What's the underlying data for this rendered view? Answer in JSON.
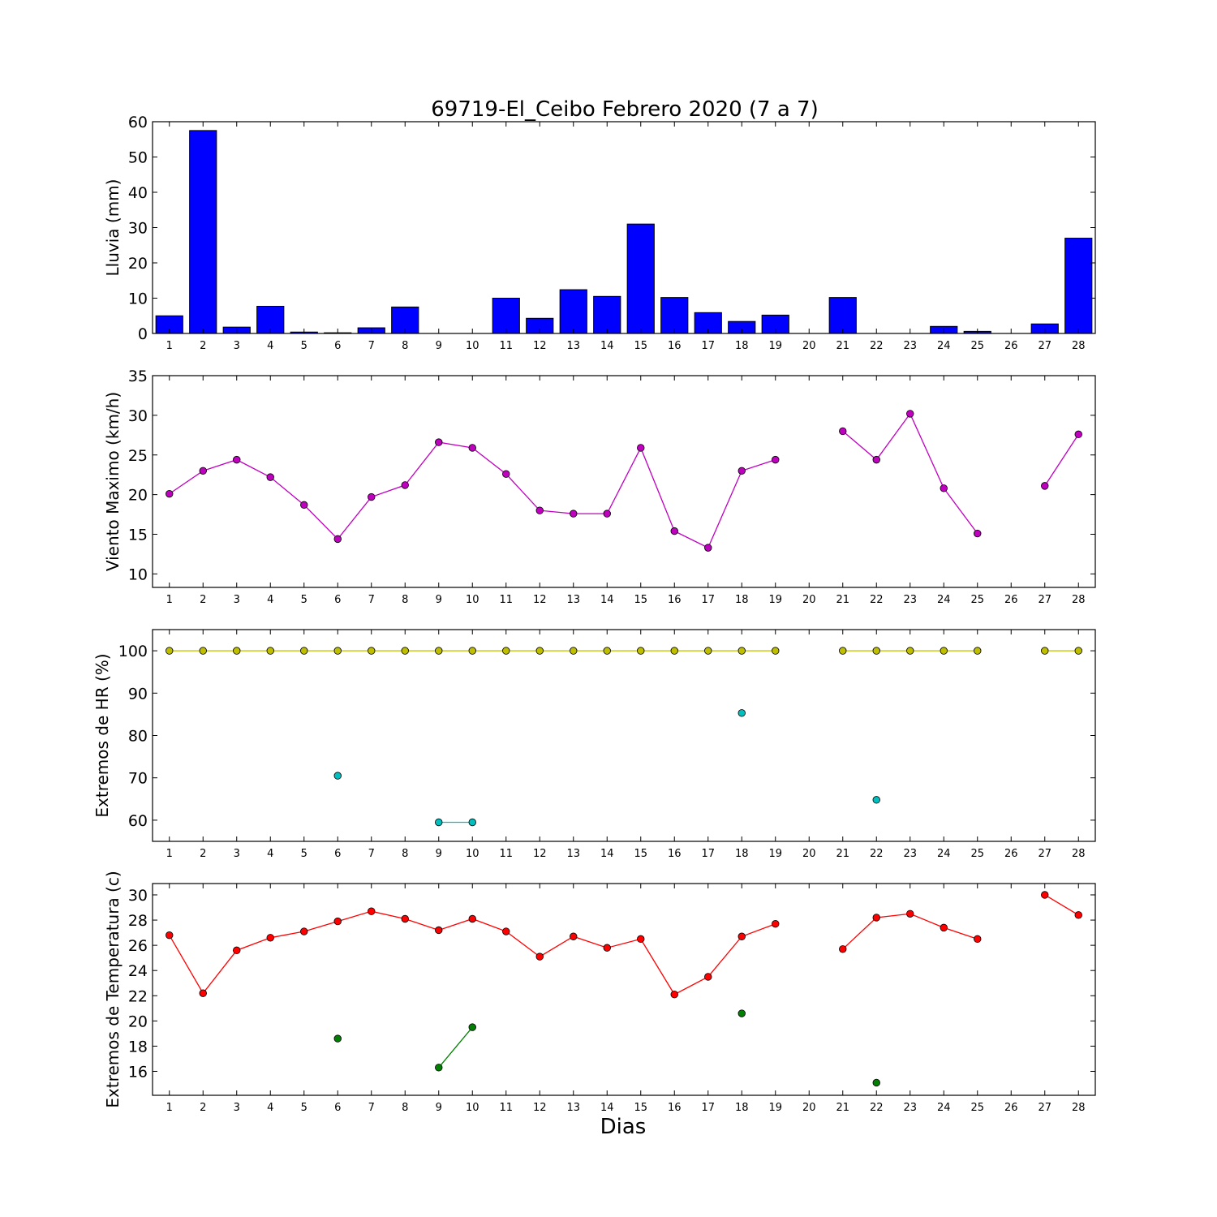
{
  "figure": {
    "title": "69719-El_Ceibo Febrero 2020  (7 a 7)",
    "xlabel": "Dias",
    "colors": {
      "rain": "#0000ff",
      "wind": "#bf00bf",
      "hr_max": "#bfbf00",
      "hr_min": "#00bfbf",
      "temp_max": "#ff0000",
      "temp_min": "#008000"
    }
  },
  "chart_data": [
    {
      "type": "bar",
      "ylabel": "Lluvia (mm)",
      "ylim": [
        0,
        60
      ],
      "yticks": [
        0,
        10,
        20,
        30,
        40,
        50,
        60
      ],
      "x": [
        1,
        2,
        3,
        4,
        5,
        6,
        7,
        8,
        9,
        10,
        11,
        12,
        13,
        14,
        15,
        16,
        17,
        18,
        19,
        20,
        21,
        22,
        23,
        24,
        25,
        26,
        27,
        28
      ],
      "values": [
        5.0,
        57.5,
        1.8,
        7.7,
        0.4,
        0.2,
        1.6,
        7.5,
        0.0,
        0.0,
        10.0,
        4.3,
        12.4,
        10.5,
        31.0,
        10.2,
        5.9,
        3.4,
        5.2,
        0.0,
        10.2,
        0.0,
        0.0,
        2.0,
        0.6,
        0.0,
        2.7,
        27.0
      ]
    },
    {
      "type": "line",
      "ylabel": "Viento Maximo (km/h)",
      "ylim": [
        8.3,
        35
      ],
      "yticks": [
        10,
        15,
        20,
        25,
        30,
        35
      ],
      "x": [
        1,
        2,
        3,
        4,
        5,
        6,
        7,
        8,
        9,
        10,
        11,
        12,
        13,
        14,
        15,
        16,
        17,
        18,
        19,
        20,
        21,
        22,
        23,
        24,
        25,
        26,
        27,
        28
      ],
      "series": [
        {
          "values": [
            20.1,
            23.0,
            24.4,
            22.2,
            18.7,
            14.4,
            19.7,
            21.2,
            26.6,
            25.9,
            22.6,
            18.0,
            17.6,
            17.6,
            25.9,
            15.4,
            13.3,
            23.0,
            24.4,
            null,
            28.0,
            24.4,
            30.2,
            20.8,
            15.1,
            null,
            21.1,
            27.6
          ]
        }
      ]
    },
    {
      "type": "line",
      "ylabel": "Extremos de HR (%)",
      "ylim": [
        55,
        105
      ],
      "yticks": [
        60,
        70,
        80,
        90,
        100
      ],
      "x": [
        1,
        2,
        3,
        4,
        5,
        6,
        7,
        8,
        9,
        10,
        11,
        12,
        13,
        14,
        15,
        16,
        17,
        18,
        19,
        20,
        21,
        22,
        23,
        24,
        25,
        26,
        27,
        28
      ],
      "series": [
        {
          "values": [
            100,
            100,
            100,
            100,
            100,
            100,
            100,
            100,
            100,
            100,
            100,
            100,
            100,
            100,
            100,
            100,
            100,
            100,
            100,
            null,
            100,
            100,
            100,
            100,
            100,
            null,
            100,
            100
          ]
        },
        {
          "values": [
            null,
            null,
            null,
            null,
            null,
            70.5,
            null,
            null,
            59.5,
            59.5,
            null,
            null,
            null,
            null,
            null,
            null,
            null,
            85.3,
            null,
            null,
            null,
            64.8,
            null,
            null,
            null,
            null,
            null,
            null
          ]
        }
      ]
    },
    {
      "type": "line",
      "ylabel": "Extremos de Temperatura (c)",
      "ylim": [
        14.1,
        30.9
      ],
      "yticks": [
        16,
        18,
        20,
        22,
        24,
        26,
        28,
        30
      ],
      "x": [
        1,
        2,
        3,
        4,
        5,
        6,
        7,
        8,
        9,
        10,
        11,
        12,
        13,
        14,
        15,
        16,
        17,
        18,
        19,
        20,
        21,
        22,
        23,
        24,
        25,
        26,
        27,
        28
      ],
      "series": [
        {
          "values": [
            26.8,
            22.2,
            25.6,
            26.6,
            27.1,
            27.9,
            28.7,
            28.1,
            27.2,
            28.1,
            27.1,
            25.1,
            26.7,
            25.8,
            26.5,
            22.1,
            23.5,
            26.7,
            27.7,
            null,
            25.7,
            28.2,
            28.5,
            27.4,
            26.5,
            null,
            30.0,
            28.4
          ]
        },
        {
          "values": [
            null,
            null,
            null,
            null,
            null,
            18.6,
            null,
            null,
            16.3,
            19.5,
            null,
            null,
            null,
            null,
            null,
            null,
            null,
            20.6,
            null,
            null,
            null,
            15.1,
            null,
            null,
            null,
            null,
            null,
            null
          ]
        }
      ]
    }
  ]
}
